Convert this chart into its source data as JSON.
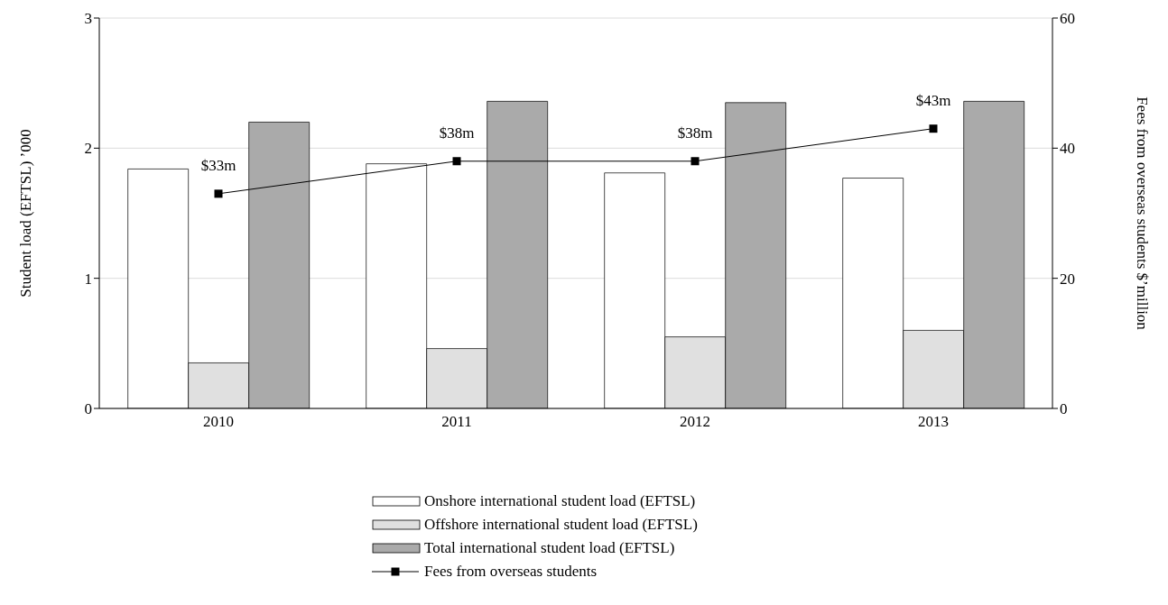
{
  "chart_data": {
    "type": "bar",
    "categories": [
      "2010",
      "2011",
      "2012",
      "2013"
    ],
    "ylabel": "Student load (EFTSL) ’000",
    "y2label": "Fees from overseas students $’million",
    "ylim": [
      0,
      3
    ],
    "yticks": [
      0,
      1,
      2,
      3
    ],
    "y2lim": [
      0,
      60
    ],
    "y2ticks": [
      0,
      20,
      40,
      60
    ],
    "grid": "y",
    "legend": "bottom",
    "series": [
      {
        "name": "Onshore international student load (EFTSL)",
        "color": "#ffffff",
        "values": [
          1.84,
          1.88,
          1.81,
          1.77
        ]
      },
      {
        "name": "Offshore international student load (EFTSL)",
        "color": "#e0e0e0",
        "values": [
          0.35,
          0.46,
          0.55,
          0.6
        ]
      },
      {
        "name": "Total international student load (EFTSL)",
        "color": "#aaaaaa",
        "values": [
          2.2,
          2.36,
          2.35,
          2.36
        ]
      },
      {
        "name": "Fees from overseas students",
        "type": "line",
        "axis": "y2",
        "color": "#000000",
        "marker": "square",
        "values": [
          33,
          38,
          38,
          43
        ],
        "value_labels": [
          "$33m",
          "$38m",
          "$38m",
          "$43m"
        ]
      }
    ]
  }
}
